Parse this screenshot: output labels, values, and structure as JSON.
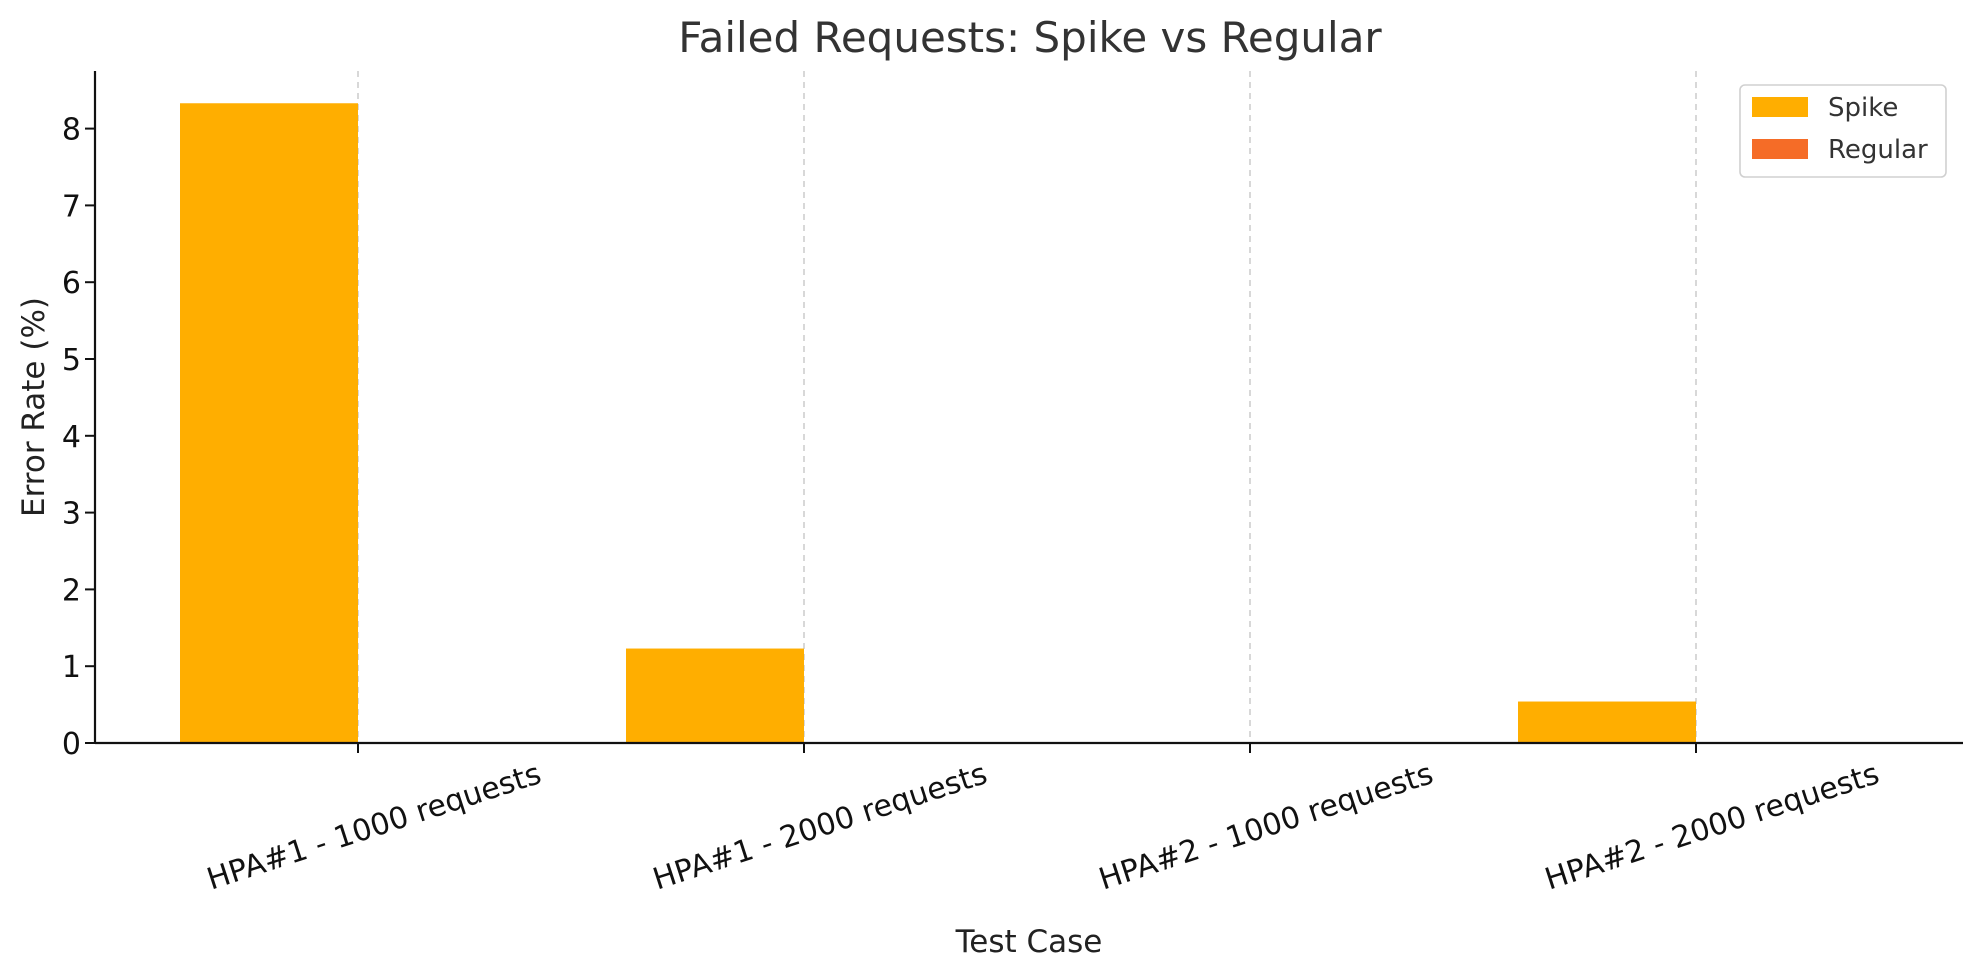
{
  "chart_data": {
    "type": "bar",
    "title": "Failed Requests: Spike vs Regular",
    "xlabel": "Test Case",
    "ylabel": "Error Rate (%)",
    "categories": [
      "HPA#1 - 1000 requests",
      "HPA#1 - 2000 requests",
      "HPA#2 - 1000 requests",
      "HPA#2 - 2000 requests"
    ],
    "series": [
      {
        "name": "Spike",
        "values": [
          8.33,
          1.23,
          0,
          0.54
        ],
        "color": "#ffae00"
      },
      {
        "name": "Regular",
        "values": [
          0,
          0,
          0,
          0
        ],
        "color": "#f56c27"
      }
    ],
    "yticks": [
      0,
      1,
      2,
      3,
      4,
      5,
      6,
      7,
      8
    ],
    "ylim": [
      0,
      8.75
    ],
    "grid": "x-only, dashed",
    "legend_position": "top-right"
  }
}
